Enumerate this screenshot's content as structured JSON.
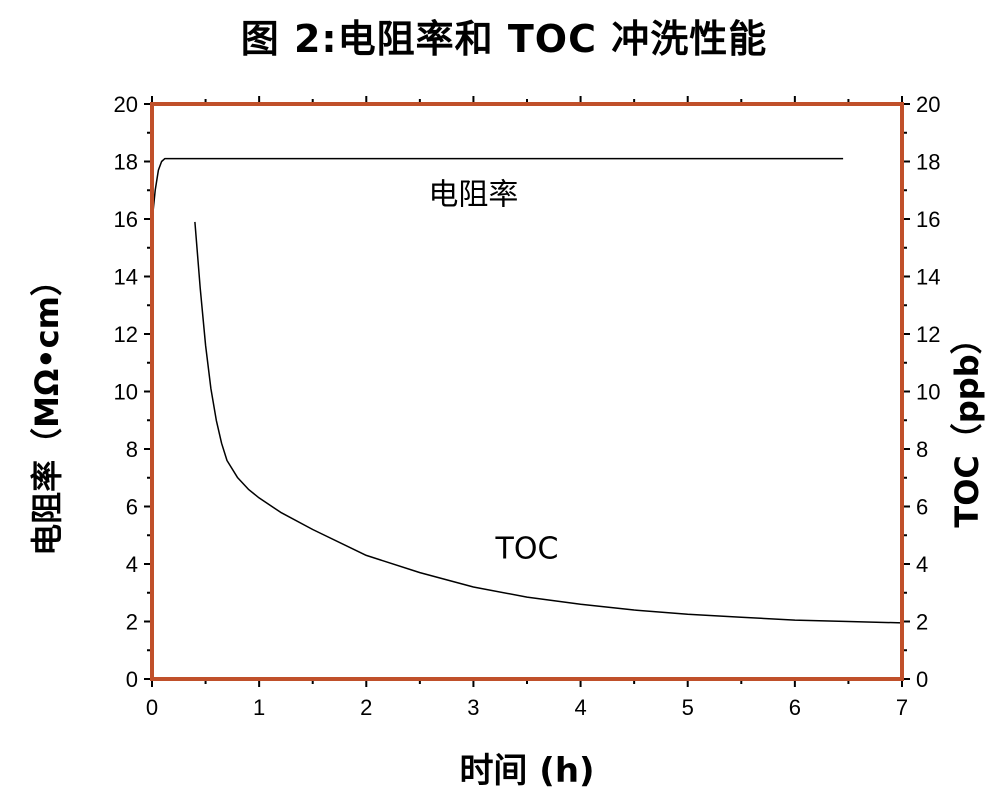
{
  "title": "图 2:电阻率和 TOC 冲洗性能",
  "chart_data": {
    "type": "line",
    "xlabel": "时间 (h)",
    "ylabel_left": "电阻率（MΩ•cm）",
    "ylabel_right": "TOC（ppb）",
    "xlim": [
      0,
      7
    ],
    "ylim_left": [
      0,
      20
    ],
    "ylim_right": [
      0,
      20
    ],
    "x_ticks": [
      "0",
      "1",
      "2",
      "3",
      "4",
      "5",
      "6",
      "7"
    ],
    "y_ticks_left": [
      "0",
      "2",
      "4",
      "6",
      "8",
      "10",
      "12",
      "14",
      "16",
      "18",
      "20"
    ],
    "y_ticks_right": [
      "0",
      "2",
      "4",
      "6",
      "8",
      "10",
      "12",
      "14",
      "16",
      "18",
      "20"
    ],
    "grid": false,
    "frame_color": "#C0502A",
    "series": [
      {
        "name": "电阻率",
        "axis": "left",
        "x": [
          0.0,
          0.03,
          0.06,
          0.09,
          0.12,
          0.15,
          0.3,
          1,
          2,
          3,
          4,
          5,
          6,
          6.45
        ],
        "y": [
          15.9,
          17.0,
          17.7,
          18.0,
          18.1,
          18.1,
          18.1,
          18.1,
          18.1,
          18.1,
          18.1,
          18.1,
          18.1,
          18.1
        ]
      },
      {
        "name": "TOC",
        "axis": "right",
        "x": [
          0.4,
          0.45,
          0.5,
          0.55,
          0.6,
          0.65,
          0.7,
          0.8,
          0.9,
          1.0,
          1.2,
          1.5,
          2.0,
          2.5,
          3.0,
          3.5,
          4.0,
          4.5,
          5.0,
          5.5,
          6.0,
          6.5,
          7.0
        ],
        "y": [
          15.9,
          13.6,
          11.6,
          10.1,
          9.0,
          8.2,
          7.6,
          7.0,
          6.6,
          6.3,
          5.8,
          5.2,
          4.3,
          3.7,
          3.2,
          2.85,
          2.6,
          2.4,
          2.25,
          2.15,
          2.05,
          2.0,
          1.95
        ]
      }
    ],
    "annotations": [
      {
        "text": "电阻率",
        "x": 3.0,
        "y": 16.5
      },
      {
        "text": "TOC",
        "x": 3.5,
        "y": 4.2
      }
    ]
  }
}
